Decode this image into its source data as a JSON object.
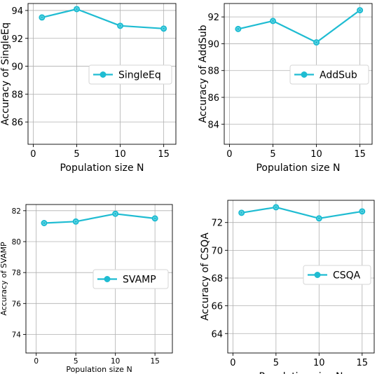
{
  "style": {
    "line_color": "#1fbcd2",
    "grid_color": "#b0b0b0"
  },
  "chart_data": [
    {
      "type": "line",
      "x": [
        1,
        5,
        10,
        15
      ],
      "series": [
        {
          "name": "SingleEq",
          "values": [
            93.5,
            94.1,
            92.9,
            92.7
          ]
        }
      ],
      "xlabel": "Population size N",
      "ylabel": "Accuracy of SingleEq",
      "xticks": [
        0,
        5,
        10,
        15
      ],
      "yticks": [
        86,
        88,
        90,
        92,
        94
      ],
      "xlim": [
        -0.6,
        16.4
      ],
      "ylim": [
        84.4,
        94.5
      ],
      "grid": true,
      "legend": "center-right"
    },
    {
      "type": "line",
      "x": [
        1,
        5,
        10,
        15
      ],
      "series": [
        {
          "name": "AddSub",
          "values": [
            91.1,
            91.7,
            90.1,
            92.5
          ]
        }
      ],
      "xlabel": "Population size N",
      "ylabel": "Accuracy of AddSub",
      "xticks": [
        0,
        5,
        10,
        15
      ],
      "yticks": [
        84,
        86,
        88,
        90,
        92
      ],
      "xlim": [
        -0.6,
        16.4
      ],
      "ylim": [
        82.5,
        93.0
      ],
      "grid": true,
      "legend": "center-right"
    },
    {
      "type": "line",
      "x": [
        1,
        5,
        10,
        15
      ],
      "series": [
        {
          "name": "SVAMP",
          "values": [
            81.2,
            81.3,
            81.8,
            81.5
          ]
        }
      ],
      "xlabel": "Population size N",
      "ylabel": "Accuracy of SVAMP",
      "xticks": [
        0,
        5,
        10,
        15
      ],
      "yticks": [
        74,
        76,
        78,
        80,
        82
      ],
      "xlim": [
        -1.3,
        17.2
      ],
      "ylim": [
        72.8,
        82.4
      ],
      "grid": true,
      "legend": "center-right"
    },
    {
      "type": "line",
      "x": [
        1,
        5,
        10,
        15
      ],
      "series": [
        {
          "name": "CSQA",
          "values": [
            72.7,
            73.1,
            72.3,
            72.8
          ]
        }
      ],
      "xlabel": "Population size N",
      "ylabel": "Accuracy of CSQA",
      "xticks": [
        0,
        5,
        10,
        15
      ],
      "yticks": [
        64,
        66,
        68,
        70,
        72
      ],
      "xlim": [
        -0.6,
        16.4
      ],
      "ylim": [
        62.6,
        73.6
      ],
      "grid": true,
      "legend": "center-right"
    }
  ]
}
